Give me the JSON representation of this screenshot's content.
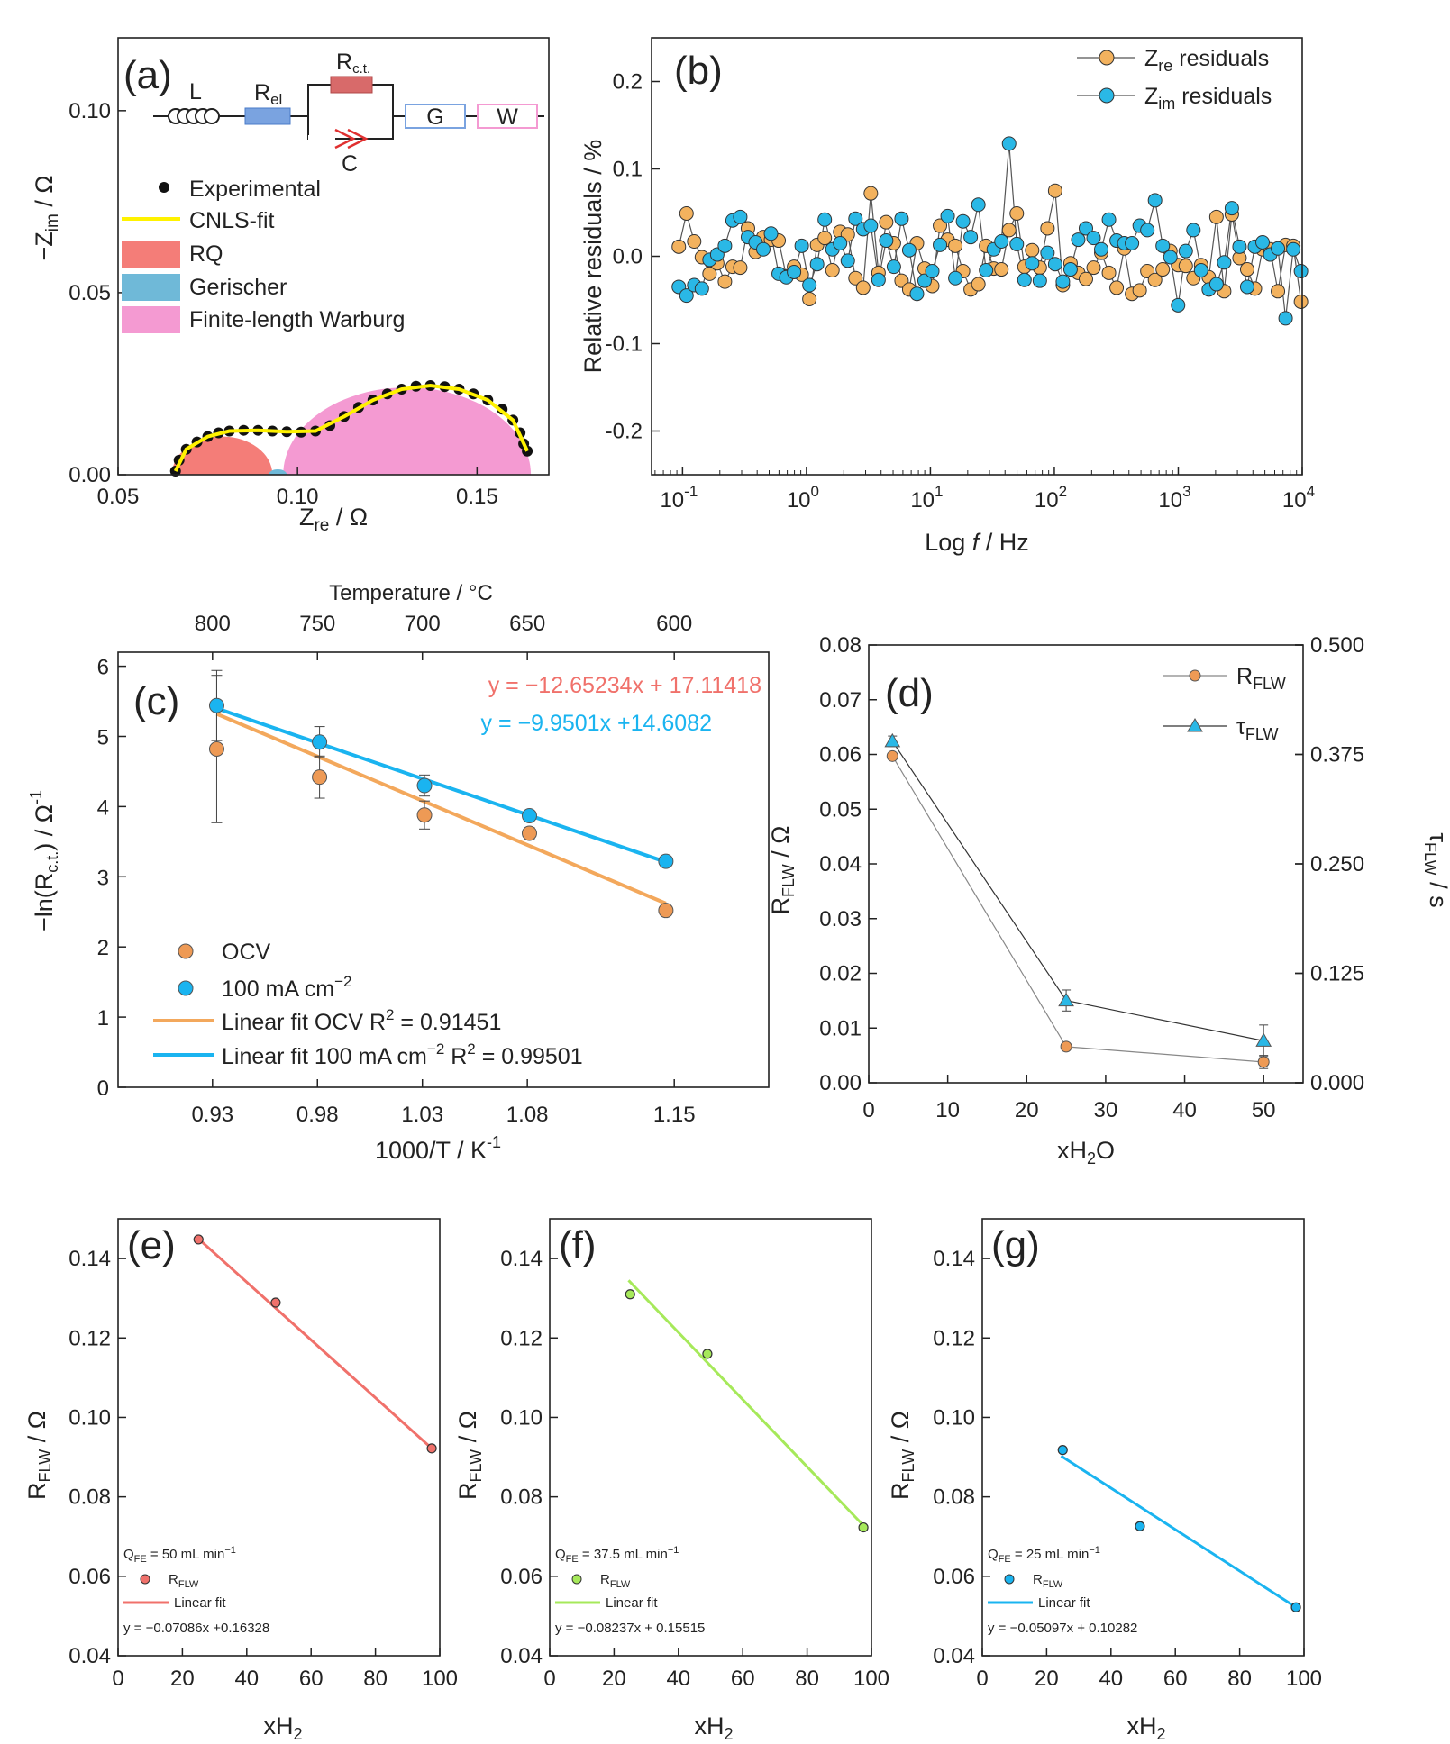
{
  "colors": {
    "orange": "#F3B25E",
    "orange_c": "#EE9A55",
    "blue": "#2AB8E6",
    "blue_d": "#1AB4F0",
    "pink": "#F49AD2",
    "red_rq": "#F47D78",
    "teal": "#6FB9D8",
    "yellow": "#FFF200",
    "red_fit": "#F0716B",
    "green_fit": "#A6E95A"
  },
  "chart_data": [
    {
      "id": "a",
      "type": "scatter",
      "panel_label": "(a)",
      "xlabel_main": "Z",
      "xlabel_sub": "re",
      "xlabel_unit": " / Ω",
      "ylabel_main": "−Z",
      "ylabel_sub": "im",
      "ylabel_unit": " / Ω",
      "xlim": [
        0.05,
        0.17
      ],
      "ylim": [
        0,
        0.12
      ],
      "xticks": [
        0.05,
        0.1,
        0.15
      ],
      "xtick_labels": [
        "0.05",
        "0.10",
        "0.15"
      ],
      "yticks": [
        0.0,
        0.05,
        0.1
      ],
      "ytick_labels": [
        "0.00",
        "0.05",
        "0.10"
      ],
      "circuit": {
        "L": "L",
        "R_el_main": "R",
        "R_el_sub": "el",
        "R_ct_main": "R",
        "R_ct_sub": "c.t.",
        "C": "C",
        "G": "G",
        "W": "W"
      },
      "legend": [
        "Experimental",
        "CNLS-fit",
        "RQ",
        "Gerischer",
        "Finite-length Warburg"
      ],
      "experimental": [
        [
          0.066,
          0.001
        ],
        [
          0.067,
          0.004
        ],
        [
          0.069,
          0.007
        ],
        [
          0.072,
          0.009
        ],
        [
          0.075,
          0.0105
        ],
        [
          0.078,
          0.0115
        ],
        [
          0.081,
          0.012
        ],
        [
          0.085,
          0.0122
        ],
        [
          0.089,
          0.0122
        ],
        [
          0.093,
          0.012
        ],
        [
          0.097,
          0.0118
        ],
        [
          0.101,
          0.0117
        ],
        [
          0.105,
          0.012
        ],
        [
          0.109,
          0.0135
        ],
        [
          0.113,
          0.016
        ],
        [
          0.117,
          0.0185
        ],
        [
          0.121,
          0.0205
        ],
        [
          0.125,
          0.0222
        ],
        [
          0.129,
          0.0235
        ],
        [
          0.133,
          0.0243
        ],
        [
          0.137,
          0.0245
        ],
        [
          0.141,
          0.0242
        ],
        [
          0.145,
          0.0235
        ],
        [
          0.149,
          0.0222
        ],
        [
          0.153,
          0.0205
        ],
        [
          0.157,
          0.018
        ],
        [
          0.16,
          0.015
        ],
        [
          0.162,
          0.0115
        ],
        [
          0.163,
          0.0085
        ],
        [
          0.164,
          0.0065
        ]
      ],
      "fit": [
        [
          0.066,
          0.001
        ],
        [
          0.069,
          0.007
        ],
        [
          0.075,
          0.0105
        ],
        [
          0.081,
          0.012
        ],
        [
          0.089,
          0.0122
        ],
        [
          0.097,
          0.0118
        ],
        [
          0.105,
          0.012
        ],
        [
          0.113,
          0.016
        ],
        [
          0.121,
          0.0205
        ],
        [
          0.129,
          0.0235
        ],
        [
          0.137,
          0.0245
        ],
        [
          0.145,
          0.0235
        ],
        [
          0.153,
          0.0205
        ],
        [
          0.16,
          0.015
        ],
        [
          0.164,
          0.0065
        ]
      ],
      "rq_arc": {
        "x_start": 0.065,
        "x_end": 0.093,
        "peak": 0.0105
      },
      "gerischer_arc": {
        "x_start": 0.092,
        "x_end": 0.097,
        "peak": 0.0015
      },
      "warburg_arc": {
        "x_start": 0.096,
        "x_end": 0.165,
        "peak": 0.024
      }
    },
    {
      "id": "b",
      "type": "scatter",
      "panel_label": "(b)",
      "xlabel_pre": "Log ",
      "xlabel_f": "f",
      "xlabel_unit": " / Hz",
      "ylabel": "Relative residuals / %",
      "xlim_log": [
        -1.25,
        4
      ],
      "ylim": [
        -0.25,
        0.25
      ],
      "yticks": [
        -0.2,
        -0.1,
        0.0,
        0.1,
        0.2
      ],
      "ytick_labels": [
        "-0.2",
        "-0.1",
        "0.0",
        "0.1",
        "0.2"
      ],
      "xticks_log": [
        -1,
        0,
        1,
        2,
        3,
        4
      ],
      "xtick_base": "10",
      "xtick_exps": [
        "-1",
        "0",
        "1",
        "2",
        "3",
        "4"
      ],
      "series": [
        {
          "name_main": "Z",
          "name_sub": "re",
          "name_suffix": " residuals",
          "color": "#F3B25E",
          "values": [
            0.011,
            0.049,
            0.017,
            -0.001,
            -0.02,
            -0.008,
            -0.029,
            -0.012,
            -0.013,
            0.032,
            0.005,
            0.022,
            0.019,
            0.018,
            -0.023,
            -0.012,
            -0.021,
            -0.049,
            0.013,
            0.021,
            -0.016,
            0.028,
            0.025,
            -0.025,
            -0.036,
            0.072,
            -0.019,
            0.039,
            0.015,
            -0.028,
            -0.038,
            0.015,
            -0.014,
            -0.034,
            0.035,
            0.019,
            0.012,
            -0.017,
            -0.038,
            -0.032,
            0.012,
            -0.014,
            -0.015,
            0.03,
            0.049,
            -0.012,
            0.007,
            -0.013,
            0.032,
            0.075,
            -0.033,
            -0.008,
            -0.019,
            -0.026,
            -0.013,
            0.004,
            -0.019,
            -0.036,
            0.009,
            -0.043,
            -0.039,
            -0.017,
            -0.027,
            -0.015,
            0.006,
            -0.01,
            -0.011,
            -0.025,
            -0.01,
            -0.024,
            0.045,
            -0.04,
            0.048,
            -0.002,
            -0.015,
            -0.037,
            0.008,
            0.008,
            -0.04,
            0.013,
            0.012,
            -0.052
          ]
        },
        {
          "name_main": "Z",
          "name_sub": "im",
          "name_suffix": " residuals",
          "color": "#2AB8E6",
          "values": [
            -0.035,
            -0.045,
            -0.033,
            -0.037,
            -0.004,
            0.002,
            0.012,
            0.041,
            0.045,
            0.022,
            0.016,
            0.008,
            0.026,
            -0.02,
            -0.024,
            -0.018,
            0.012,
            -0.033,
            -0.009,
            0.042,
            0.008,
            0.015,
            -0.005,
            0.043,
            0.031,
            0.035,
            -0.027,
            0.018,
            -0.012,
            0.043,
            0.007,
            -0.043,
            -0.028,
            -0.017,
            0.013,
            0.046,
            -0.025,
            0.04,
            0.022,
            0.059,
            -0.016,
            0.008,
            0.017,
            0.129,
            0.014,
            -0.027,
            -0.008,
            -0.028,
            0.004,
            -0.009,
            -0.029,
            -0.015,
            0.019,
            0.032,
            0.021,
            0.008,
            0.042,
            0.018,
            0.015,
            0.015,
            0.035,
            0.03,
            0.064,
            0.012,
            -0.001,
            -0.056,
            0.006,
            0.03,
            -0.016,
            -0.038,
            -0.032,
            -0.007,
            0.055,
            0.011,
            -0.035,
            0.011,
            0.016,
            0.002,
            0.009,
            -0.071,
            0.008,
            -0.017
          ]
        }
      ]
    },
    {
      "id": "c",
      "type": "scatter",
      "panel_label": "(c)",
      "xlabel": "1000/T / K",
      "xlabel_sup": "-1",
      "ylabel_pre": "−ln(R",
      "ylabel_sub": "c.t.",
      "ylabel_post": ") / Ω",
      "ylabel_sup": "-1",
      "top_label": "Temperature / °C",
      "xlim": [
        0.885,
        1.195
      ],
      "ylim": [
        0,
        6.2
      ],
      "xticks": [
        0.93,
        0.98,
        1.03,
        1.08,
        1.15
      ],
      "xtick_labels": [
        "0.93",
        "0.98",
        "1.03",
        "1.08",
        "1.15"
      ],
      "yticks": [
        0,
        1,
        2,
        3,
        4,
        5,
        6
      ],
      "ytick_labels": [
        "0",
        "1",
        "2",
        "3",
        "4",
        "5",
        "6"
      ],
      "top_ticks": [
        800,
        750,
        700,
        650,
        600
      ],
      "top_tick_labels": [
        "800",
        "750",
        "700",
        "650",
        "600"
      ],
      "equation_ocv": "y = −12.65234x + 17.11418",
      "equation_100": "y = −9.9501x +14.6082",
      "series": [
        {
          "name": "OCV",
          "color": "#EE9A55",
          "x": [
            0.932,
            0.981,
            1.031,
            1.081,
            1.146
          ],
          "y": [
            4.82,
            4.42,
            3.88,
            3.62,
            2.52
          ],
          "err": [
            1.05,
            0.3,
            0.2,
            0.08,
            0.06
          ]
        },
        {
          "name_pre": "100 mA cm",
          "name_sup": "−2",
          "color": "#1AB4F0",
          "x": [
            0.932,
            0.981,
            1.031,
            1.081,
            1.146
          ],
          "y": [
            5.44,
            4.92,
            4.3,
            3.87,
            3.22
          ],
          "err": [
            0.5,
            0.22,
            0.15,
            0.07,
            0.06
          ]
        }
      ],
      "fits": [
        {
          "label_pre": "Linear fit OCV R",
          "label_sup": "2",
          "label_post": " = 0.91451",
          "color": "#F3A85C",
          "x": [
            0.932,
            1.146
          ],
          "y": [
            5.32,
            2.62
          ]
        },
        {
          "label_pre": "Linear fit 100 mA cm",
          "label_sup": "−2",
          "label_mid": " R",
          "label_sup2": "2",
          "label_post": " = 0.99501",
          "color": "#1AB4F0",
          "x": [
            0.932,
            1.146
          ],
          "y": [
            5.4,
            3.21
          ]
        }
      ]
    },
    {
      "id": "d",
      "type": "line",
      "panel_label": "(d)",
      "xlabel_pre": "xH",
      "xlabel_sub": "2",
      "xlabel_post": "O",
      "ylabel_main": "R",
      "ylabel_sub": "FLW",
      "ylabel_unit": " / Ω",
      "y2label_main": "τ",
      "y2label_sub": "FLW",
      "y2label_unit": " / s",
      "xlim": [
        0,
        55
      ],
      "ylim": [
        0,
        0.08
      ],
      "y2lim": [
        0,
        0.5
      ],
      "xticks": [
        0,
        10,
        20,
        30,
        40,
        50
      ],
      "xtick_labels": [
        "0",
        "10",
        "20",
        "30",
        "40",
        "50"
      ],
      "yticks": [
        0,
        0.01,
        0.02,
        0.03,
        0.04,
        0.05,
        0.06,
        0.07,
        0.08
      ],
      "ytick_labels": [
        "0.00",
        "0.01",
        "0.02",
        "0.03",
        "0.04",
        "0.05",
        "0.06",
        "0.07",
        "0.08"
      ],
      "y2ticks": [
        0,
        0.125,
        0.25,
        0.375,
        0.5
      ],
      "y2tick_labels": [
        "0.000",
        "0.125",
        "0.250",
        "0.375",
        "0.500"
      ],
      "series": [
        {
          "name_main": "R",
          "name_sub": "FLW",
          "axis": "left",
          "color": "#EE9A55",
          "x": [
            3,
            25,
            50
          ],
          "y": [
            0.0597,
            0.0066,
            0.0038
          ],
          "err": [
            0,
            0,
            0.0012
          ]
        },
        {
          "name_main": "τ",
          "name_sub": "FLW",
          "axis": "right",
          "color": "#2AB8E6",
          "x": [
            3,
            25,
            50
          ],
          "y": [
            0.39,
            0.094,
            0.048
          ],
          "err": [
            0.006,
            0.012,
            0.018
          ]
        }
      ]
    },
    {
      "id": "e",
      "type": "scatter",
      "panel_label": "(e)",
      "xlabel_pre": "xH",
      "xlabel_sub": "2",
      "ylabel_main": "R",
      "ylabel_sub": "FLW",
      "ylabel_unit": " / Ω",
      "xlim": [
        0,
        100
      ],
      "ylim": [
        0.04,
        0.15
      ],
      "xticks": [
        0,
        20,
        40,
        60,
        80,
        100
      ],
      "xtick_labels": [
        "0",
        "20",
        "40",
        "60",
        "80",
        "100"
      ],
      "yticks": [
        0.04,
        0.06,
        0.08,
        0.1,
        0.12,
        0.14
      ],
      "ytick_labels": [
        "0.04",
        "0.06",
        "0.08",
        "0.10",
        "0.12",
        "0.14"
      ],
      "q_pre": "Q",
      "q_sub": "FE",
      "q_post": " = 50 mL min",
      "q_sup": "−1",
      "legend_pt_main": "R",
      "legend_pt_sub": "FLW",
      "legend_fit": "Linear fit",
      "equation": "y = −0.07086x +0.16328",
      "color": "#F0716B",
      "x": [
        25,
        49,
        97.5
      ],
      "y": [
        0.1448,
        0.1289,
        0.0922
      ],
      "fit": {
        "x": [
          24,
          97.5
        ],
        "y": [
          0.1457,
          0.0922
        ]
      }
    },
    {
      "id": "f",
      "type": "scatter",
      "panel_label": "(f)",
      "xlabel_pre": "xH",
      "xlabel_sub": "2",
      "ylabel_main": "R",
      "ylabel_sub": "FLW",
      "ylabel_unit": " / Ω",
      "xlim": [
        0,
        100
      ],
      "ylim": [
        0.04,
        0.15
      ],
      "xticks": [
        0,
        20,
        40,
        60,
        80,
        100
      ],
      "xtick_labels": [
        "0",
        "20",
        "40",
        "60",
        "80",
        "100"
      ],
      "yticks": [
        0.04,
        0.06,
        0.08,
        0.1,
        0.12,
        0.14
      ],
      "ytick_labels": [
        "0.04",
        "0.06",
        "0.08",
        "0.10",
        "0.12",
        "0.14"
      ],
      "q_pre": "Q",
      "q_sub": "FE",
      "q_post": " = 37.5 mL min",
      "q_sup": "−1",
      "legend_pt_main": "R",
      "legend_pt_sub": "FLW",
      "legend_fit": "Linear fit",
      "equation": "y = −0.08237x + 0.15515",
      "color": "#A6E95A",
      "x": [
        25,
        49,
        97.5
      ],
      "y": [
        0.131,
        0.116,
        0.0723
      ],
      "fit": {
        "x": [
          24.5,
          97.5
        ],
        "y": [
          0.1345,
          0.0728
        ]
      }
    },
    {
      "id": "g",
      "type": "scatter",
      "panel_label": "(g)",
      "xlabel_pre": "xH",
      "xlabel_sub": "2",
      "ylabel_main": "R",
      "ylabel_sub": "FLW",
      "ylabel_unit": " / Ω",
      "xlim": [
        0,
        100
      ],
      "ylim": [
        0.04,
        0.15
      ],
      "xticks": [
        0,
        20,
        40,
        60,
        80,
        100
      ],
      "xtick_labels": [
        "0",
        "20",
        "40",
        "60",
        "80",
        "100"
      ],
      "yticks": [
        0.04,
        0.06,
        0.08,
        0.1,
        0.12,
        0.14
      ],
      "ytick_labels": [
        "0.04",
        "0.06",
        "0.08",
        "0.10",
        "0.12",
        "0.14"
      ],
      "q_pre": "Q",
      "q_sub": "FE",
      "q_post": " = 25 mL min",
      "q_sup": "−1",
      "legend_pt_main": "R",
      "legend_pt_sub": "FLW",
      "legend_fit": "Linear fit",
      "equation": "y = −0.05097x + 0.10282",
      "color": "#1AB4F0",
      "x": [
        25,
        49,
        97.5
      ],
      "y": [
        0.0918,
        0.0726,
        0.0522
      ],
      "fit": {
        "x": [
          24.5,
          97.5
        ],
        "y": [
          0.0903,
          0.0522
        ]
      }
    }
  ]
}
